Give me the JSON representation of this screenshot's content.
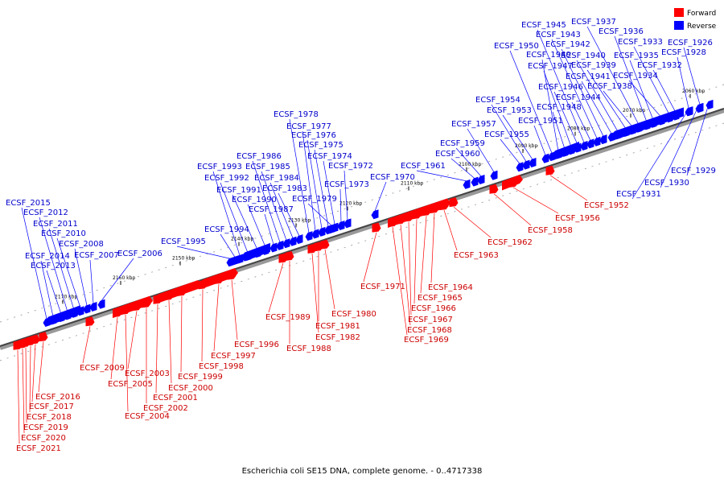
{
  "legend": [
    {
      "label": "Forward",
      "color": "#ff0000"
    },
    {
      "label": "Reverse",
      "color": "#0000ff"
    }
  ],
  "colors": {
    "forward": "#ff0000",
    "reverse": "#0000ff",
    "forward_label": "#cc0000",
    "reverse_label": "#0000cc",
    "axis": "#888888"
  },
  "footer": "Escherichia coli SE15 DNA, complete genome. - 0..4717338",
  "ticks": [
    "2060 kbp",
    "2070 kbp",
    "2080 kbp",
    "2090 kbp",
    "2100 kbp",
    "2110 kbp",
    "2120 kbp",
    "2130 kbp",
    "2140 kbp",
    "2150 kbp",
    "2160 kbp",
    "2170 kbp"
  ],
  "forward_genes": [
    "ECSF_1952",
    "ECSF_1956",
    "ECSF_1958",
    "ECSF_1962",
    "ECSF_1963",
    "ECSF_1964",
    "ECSF_1965",
    "ECSF_1966",
    "ECSF_1967",
    "ECSF_1968",
    "ECSF_1969",
    "ECSF_1971",
    "ECSF_1980",
    "ECSF_1981",
    "ECSF_1982",
    "ECSF_1988",
    "ECSF_1989",
    "ECSF_1996",
    "ECSF_1997",
    "ECSF_1998",
    "ECSF_1999",
    "ECSF_2000",
    "ECSF_2001",
    "ECSF_2002",
    "ECSF_2003",
    "ECSF_2004",
    "ECSF_2005",
    "ECSF_2009",
    "ECSF_2016",
    "ECSF_2017",
    "ECSF_2018",
    "ECSF_2019",
    "ECSF_2020",
    "ECSF_2021"
  ],
  "reverse_genes": [
    "ECSF_1926",
    "ECSF_1928",
    "ECSF_1929",
    "ECSF_1930",
    "ECSF_1931",
    "ECSF_1932",
    "ECSF_1933",
    "ECSF_1934",
    "ECSF_1935",
    "ECSF_1936",
    "ECSF_1937",
    "ECSF_1938",
    "ECSF_1939",
    "ECSF_1940",
    "ECSF_1941",
    "ECSF_1942",
    "ECSF_1943",
    "ECSF_1944",
    "ECSF_1945",
    "ECSF_1946",
    "ECSF_1947",
    "ECSF_1948",
    "ECSF_1949",
    "ECSF_1950",
    "ECSF_1951",
    "ECSF_1953",
    "ECSF_1954",
    "ECSF_1955",
    "ECSF_1957",
    "ECSF_1959",
    "ECSF_1960",
    "ECSF_1961",
    "ECSF_1970",
    "ECSF_1972",
    "ECSF_1973",
    "ECSF_1974",
    "ECSF_1975",
    "ECSF_1976",
    "ECSF_1977",
    "ECSF_1978",
    "ECSF_1979",
    "ECSF_1983",
    "ECSF_1984",
    "ECSF_1985",
    "ECSF_1986",
    "ECSF_1987",
    "ECSF_1990",
    "ECSF_1991",
    "ECSF_1992",
    "ECSF_1993",
    "ECSF_1994",
    "ECSF_1995",
    "ECSF_2006",
    "ECSF_2007",
    "ECSF_2008",
    "ECSF_2010",
    "ECSF_2011",
    "ECSF_2012",
    "ECSF_2013",
    "ECSF_2014",
    "ECSF_2015"
  ]
}
